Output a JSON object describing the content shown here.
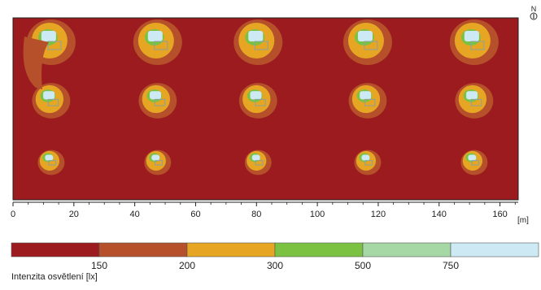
{
  "north_label": "N",
  "chart_data": {
    "type": "heatmap",
    "title": "",
    "xlabel": "",
    "ylabel": "",
    "x_unit": "[m]",
    "x_ticks": [
      0,
      20,
      40,
      60,
      80,
      100,
      120,
      140,
      160
    ],
    "xlim": [
      0,
      166
    ],
    "grid": false,
    "luminaire_x": [
      12,
      47,
      80,
      116,
      151
    ],
    "luminaire_rows": [
      "top",
      "middle",
      "bottom"
    ],
    "legend": {
      "title": "Intenzita osvětlení [lx]",
      "thresholds": [
        150,
        200,
        300,
        500,
        750
      ],
      "colors": [
        "#9b1b1e",
        "#b5502a",
        "#e6a623",
        "#7cc242",
        "#a6d8a6",
        "#cdeaf4"
      ]
    }
  }
}
